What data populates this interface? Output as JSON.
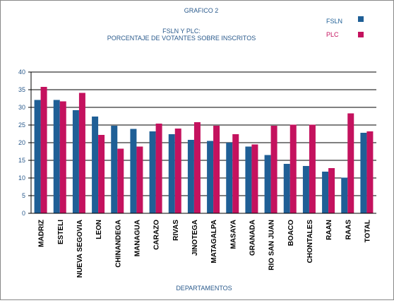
{
  "chart_data": {
    "type": "bar",
    "heading": "GRAFICO 2",
    "title_lines": [
      "FSLN Y PLC:",
      "PORCENTAJE DE VOTANTES SOBRE INSCRITOS"
    ],
    "xlabel": "DEPARTAMENTOS",
    "ylabel": "",
    "ylim": [
      0,
      40
    ],
    "yticks": [
      "0",
      "5",
      "10",
      "15",
      "20",
      "25",
      "30",
      "35",
      "40"
    ],
    "grid": true,
    "legend_position": "top-right",
    "categories": [
      "MADRIZ",
      "ESTELI",
      "NUEVA SEGOVIA",
      "LEON",
      "CHINANDEGA",
      "MANAGUA",
      "CARAZO",
      "RIVAS",
      "JINOTEGA",
      "MATAGALPA",
      "MASAYA",
      "GRANADA",
      "RIO SAN JUAN",
      "BOACO",
      "CHONTALES",
      "RAAN",
      "RAAS",
      "TOTAL"
    ],
    "series": [
      {
        "name": "FSLN",
        "color": "#1f5f96",
        "values": [
          32.1,
          32.1,
          29.2,
          27.4,
          24.8,
          23.9,
          23.2,
          22.4,
          20.8,
          20.5,
          20.0,
          18.9,
          16.5,
          14.0,
          13.4,
          11.8,
          10.1,
          22.8
        ]
      },
      {
        "name": "PLC",
        "color": "#c4125e",
        "values": [
          35.8,
          31.7,
          34.1,
          22.2,
          18.3,
          18.9,
          25.4,
          24.0,
          25.8,
          24.8,
          22.4,
          19.5,
          24.8,
          25.1,
          25.1,
          12.8,
          28.3,
          23.2
        ]
      }
    ]
  }
}
